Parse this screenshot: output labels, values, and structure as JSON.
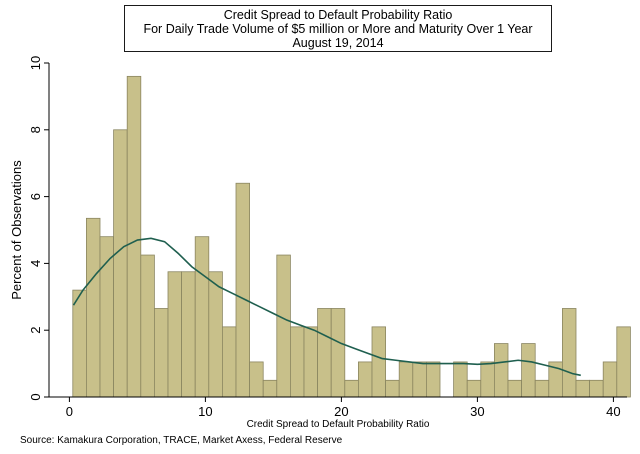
{
  "chart_data": {
    "type": "bar",
    "title": "Credit Spread to Default Probability Ratio",
    "subtitle": [
      "For Daily Trade Volume of $5 million or More and Maturity Over 1 Year",
      "August 19, 2014"
    ],
    "xlabel": "Credit Spread to Default Probability Ratio",
    "ylabel": "Percent of Observations",
    "source": "Source: Kamakura Corporation, TRACE, Market Axess, Federal Reserve",
    "xlim": [
      -1.5,
      41
    ],
    "ylim": [
      0,
      10
    ],
    "xticks": [
      0,
      10,
      20,
      30,
      40
    ],
    "yticks": [
      0,
      2,
      4,
      6,
      8,
      10
    ],
    "bin_width": 1,
    "bins_start": 0.25,
    "values": [
      3.2,
      5.35,
      4.8,
      8.0,
      9.6,
      4.25,
      2.65,
      3.75,
      3.75,
      4.8,
      3.75,
      2.1,
      6.4,
      1.05,
      0.5,
      4.25,
      2.1,
      2.1,
      2.65,
      2.65,
      0.5,
      1.05,
      2.1,
      0.5,
      1.05,
      1.05,
      1.05,
      0.0,
      1.05,
      0.5,
      1.05,
      1.6,
      0.5,
      1.6,
      0.5,
      1.05,
      2.65,
      0.5,
      0.5,
      1.05,
      2.1
    ],
    "density": {
      "x": [
        0.3,
        1,
        2,
        3,
        4,
        5,
        6,
        7,
        8,
        9,
        10,
        11,
        12,
        13,
        14,
        15,
        16,
        17,
        18,
        19,
        20,
        21,
        22,
        23,
        24,
        25,
        26,
        27,
        28,
        29,
        30,
        31,
        32,
        33,
        34,
        35,
        36,
        37,
        37.6
      ],
      "y": [
        2.75,
        3.2,
        3.7,
        4.15,
        4.5,
        4.7,
        4.75,
        4.65,
        4.3,
        3.9,
        3.6,
        3.3,
        3.1,
        2.9,
        2.7,
        2.5,
        2.3,
        2.15,
        2.0,
        1.8,
        1.6,
        1.45,
        1.3,
        1.15,
        1.1,
        1.05,
        1.0,
        1.0,
        1.0,
        1.0,
        0.98,
        1.0,
        1.05,
        1.1,
        1.05,
        0.95,
        0.85,
        0.7,
        0.65
      ]
    },
    "grid": false,
    "colors": {
      "bar_fill": "#c8c08a",
      "bar_stroke": "#8a8560",
      "density_line": "#1f5f4f",
      "plot_bg": "#ffffff",
      "axis": "#000000"
    }
  }
}
